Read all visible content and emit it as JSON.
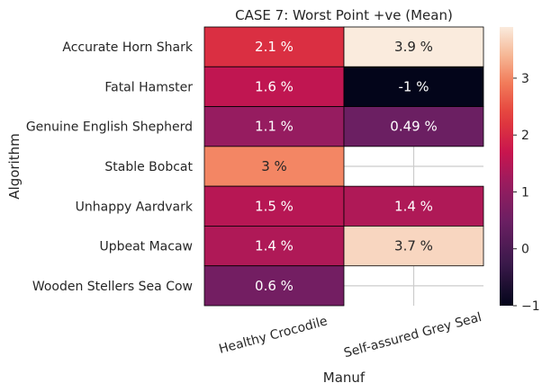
{
  "chart_data": {
    "type": "heatmap",
    "title": "CASE 7: Worst Point +ve (Mean)",
    "xlabel": "Manuf",
    "ylabel": "Algorithm",
    "columns": [
      "Healthy Crocodile",
      "Self-assured Grey Seal"
    ],
    "rows": [
      "Accurate Horn Shark",
      "Fatal Hamster",
      "Genuine English Shepherd",
      "Stable Bobcat",
      "Unhappy Aardvark",
      "Upbeat Macaw",
      "Wooden Stellers Sea Cow"
    ],
    "values": [
      [
        2.1,
        3.9
      ],
      [
        1.6,
        -1
      ],
      [
        1.1,
        0.49
      ],
      [
        3,
        null
      ],
      [
        1.5,
        1.4
      ],
      [
        1.4,
        3.7
      ],
      [
        0.6,
        null
      ]
    ],
    "cell_labels": [
      [
        "2.1 %",
        "3.9 %"
      ],
      [
        "1.6 %",
        "-1 %"
      ],
      [
        "1.1 %",
        "0.49 %"
      ],
      [
        "3 %",
        ""
      ],
      [
        "1.5 %",
        "1.4 %"
      ],
      [
        "1.4 %",
        "3.7 %"
      ],
      [
        "0.6 %",
        ""
      ]
    ],
    "colorbar": {
      "range": [
        -1,
        3.9
      ],
      "ticks": [
        3,
        2,
        1,
        0,
        -1
      ],
      "tick_labels": [
        "3",
        "2",
        "1",
        "0",
        "−1"
      ],
      "colormap": "rocket"
    },
    "grid": true
  }
}
